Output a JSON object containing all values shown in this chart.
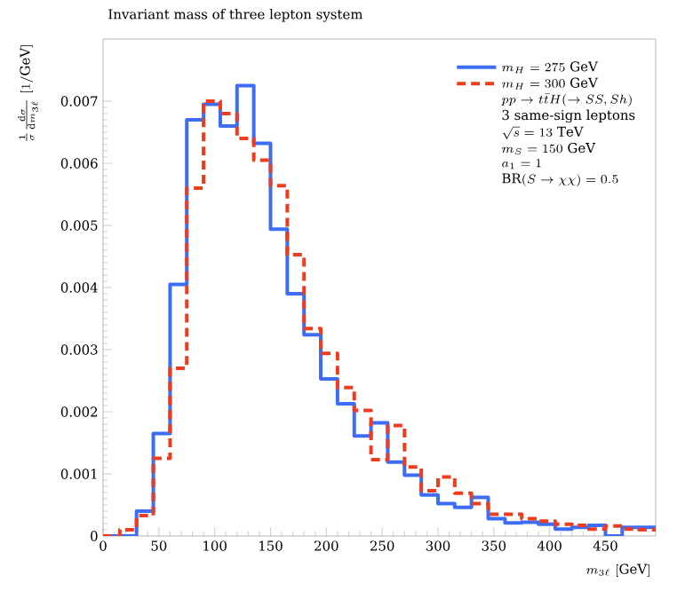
{
  "chart_data": {
    "type": "histogram",
    "title": "Invariant mass of three lepton system",
    "xlabel": "m_{3\\ell}\\ [\\mathrm{GeV}]",
    "ylabel": "\\frac{1}{\\sigma}\\frac{\\mathrm{d}\\sigma}{\\mathrm{d}m_{3\\ell}}\\ [1/\\mathrm{GeV}]",
    "bins": [
      0,
      15,
      30,
      45,
      60,
      75,
      90,
      105,
      120,
      135,
      150,
      165,
      180,
      195,
      210,
      225,
      240,
      255,
      270,
      285,
      300,
      315,
      330,
      345,
      360,
      375,
      390,
      405,
      420,
      435,
      450,
      465,
      480,
      495
    ],
    "series": [
      {
        "name": "m_H = 275\\ \\mathrm{GeV}",
        "color": "#3d6df5",
        "line_style": "solid",
        "values": [
          0.0,
          0.0,
          0.0004,
          0.00165,
          0.00405,
          0.0067,
          0.00695,
          0.0066,
          0.00725,
          0.00632,
          0.00494,
          0.0039,
          0.00324,
          0.00253,
          0.00213,
          0.00161,
          0.00182,
          0.00119,
          0.00098,
          0.00066,
          0.00052,
          0.00046,
          0.00062,
          0.00028,
          0.00021,
          0.00022,
          0.00019,
          0.00011,
          0.00014,
          0.00017,
          0.0,
          0.00014,
          0.00014
        ]
      },
      {
        "name": "m_H = 300\\ \\mathrm{GeV}",
        "color": "#f03c1e",
        "line_style": "dashed",
        "values": [
          0.0,
          0.0001,
          0.00033,
          0.00125,
          0.0027,
          0.0056,
          0.007,
          0.0068,
          0.0064,
          0.00605,
          0.00564,
          0.00453,
          0.00334,
          0.00294,
          0.00239,
          0.00202,
          0.00123,
          0.00178,
          0.00111,
          0.00073,
          0.00095,
          0.00069,
          0.00052,
          0.00035,
          0.00035,
          0.00028,
          0.00024,
          0.00019,
          0.00017,
          0.00011,
          0.00016,
          0.00011,
          0.0001
        ]
      }
    ],
    "annotations": [
      "pp \\to t\\bar{t}H(\\to SS, Sh)",
      "3 same-sign leptons",
      "\\sqrt{s} = 13\\ \\mathrm{TeV}",
      "m_S = 150\\ \\mathrm{GeV}",
      "a_1 = 1",
      "\\mathrm{BR}(S \\to \\chi\\chi) = 0.5"
    ],
    "xlim": [
      0,
      495
    ],
    "ylim": [
      0,
      0.008
    ],
    "xticks": [
      0,
      50,
      100,
      150,
      200,
      250,
      300,
      350,
      400,
      450
    ],
    "yticks": [
      0,
      0.001,
      0.002,
      0.003,
      0.004,
      0.005,
      0.006,
      0.007
    ],
    "legend": "top right",
    "grid": false,
    "marker": "none"
  }
}
